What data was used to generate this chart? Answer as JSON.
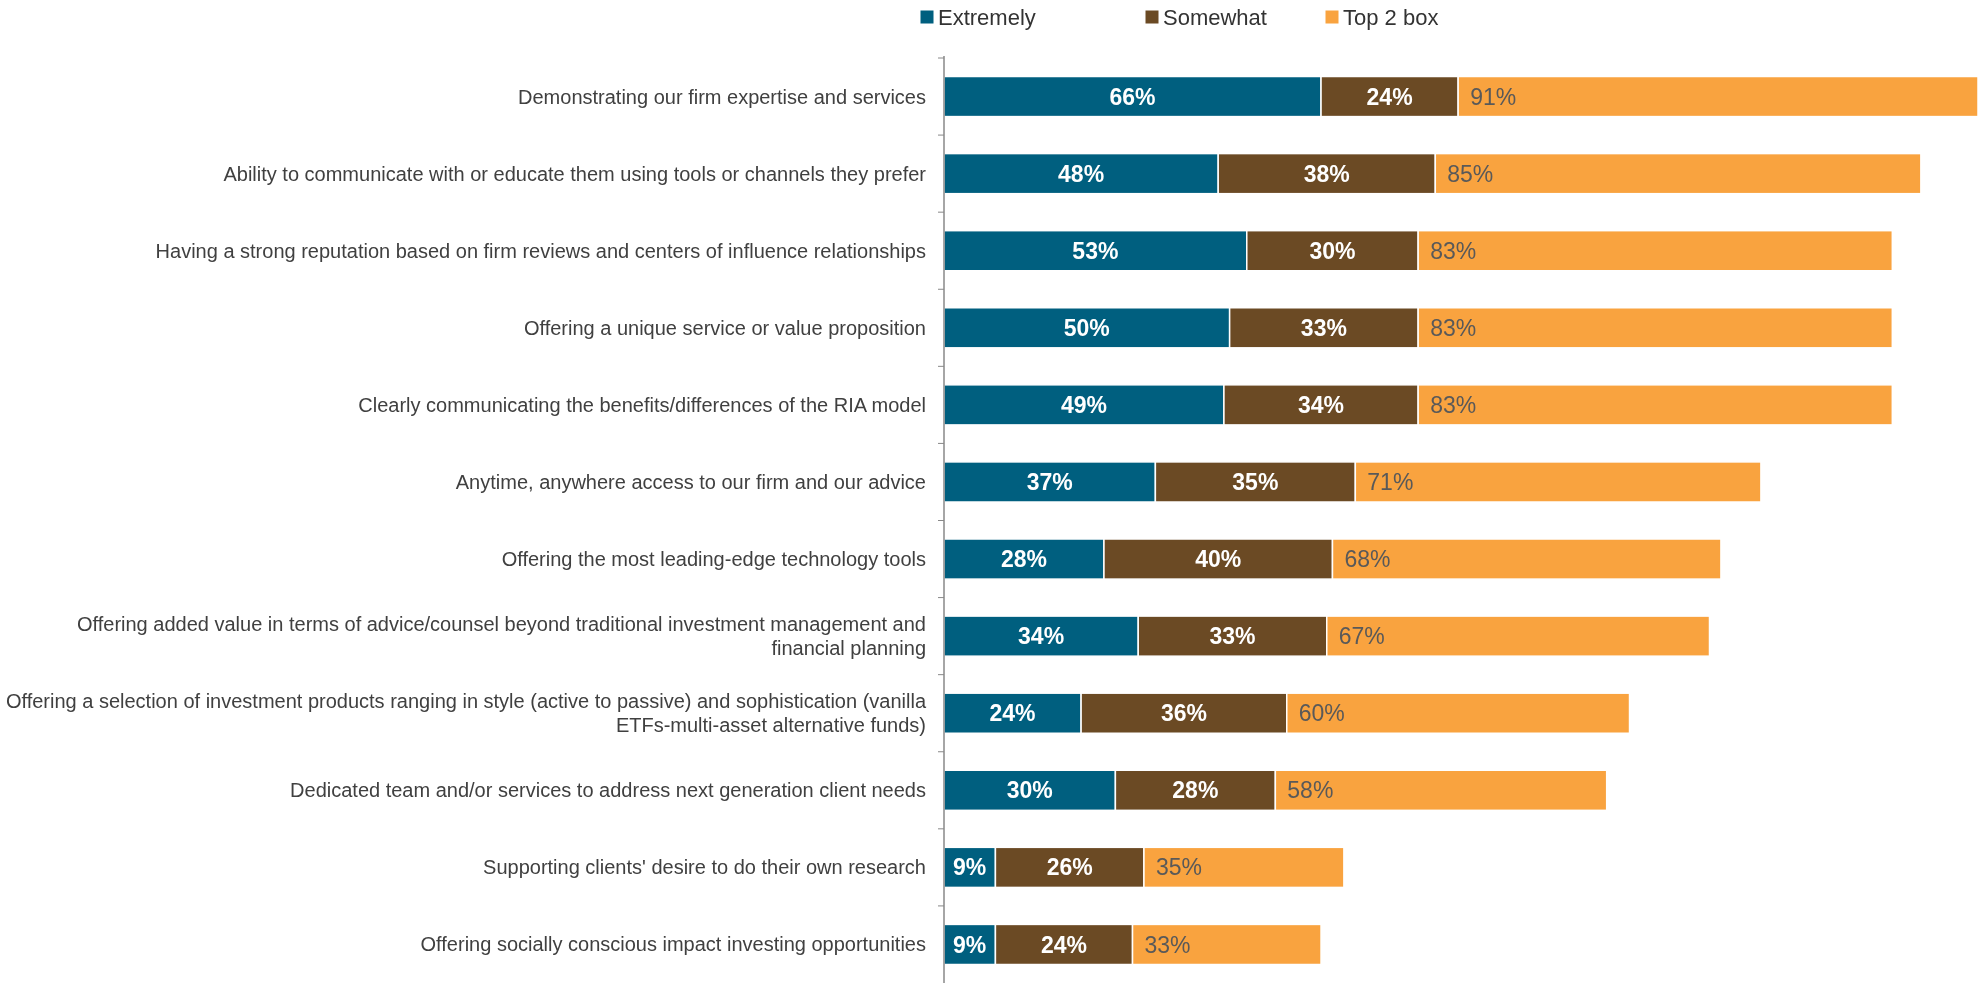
{
  "chart_data": {
    "type": "bar",
    "orientation": "horizontal",
    "stacked": true,
    "tick_labels": "y",
    "legend": "top",
    "categories": [
      "Demonstrating our firm expertise and services",
      "Ability to communicate with or educate them using tools or channels they prefer",
      "Having a strong reputation based on firm reviews and centers of influence relationships",
      "Offering a unique service or value proposition",
      "Clearly communicating the benefits/differences of the RIA model",
      "Anytime, anywhere access to our firm and our advice",
      "Offering the most leading-edge technology tools",
      "Offering added value in terms of advice/counsel beyond traditional investment management and financial planning",
      "Offering a selection of investment products ranging in style (active to passive) and sophistication (vanilla ETFs-multi-asset alternative funds)",
      "Dedicated team and/or services to address next generation client needs",
      "Supporting clients' desire to do their own research",
      "Offering socially conscious impact investing opportunities"
    ],
    "series": [
      {
        "name": "Extremely",
        "color": "#005f7f",
        "values": [
          66,
          48,
          53,
          50,
          49,
          37,
          28,
          34,
          24,
          30,
          9,
          9
        ],
        "value_labels": [
          "66%",
          "48%",
          "53%",
          "50%",
          "49%",
          "37%",
          "28%",
          "34%",
          "24%",
          "30%",
          "9%",
          "9%"
        ]
      },
      {
        "name": "Somewhat",
        "color": "#6b4a24",
        "values": [
          24,
          38,
          30,
          33,
          34,
          35,
          40,
          33,
          36,
          28,
          26,
          24
        ],
        "value_labels": [
          "24%",
          "38%",
          "30%",
          "33%",
          "34%",
          "35%",
          "40%",
          "33%",
          "36%",
          "28%",
          "26%",
          "24%"
        ]
      },
      {
        "name": "Top 2 box",
        "color": "#f9a33f",
        "values": [
          91,
          85,
          83,
          83,
          83,
          71,
          68,
          67,
          60,
          58,
          35,
          33
        ],
        "value_labels": [
          "91%",
          "85%",
          "83%",
          "83%",
          "83%",
          "71%",
          "68%",
          "67%",
          "60%",
          "58%",
          "35%",
          "33%"
        ]
      }
    ]
  }
}
